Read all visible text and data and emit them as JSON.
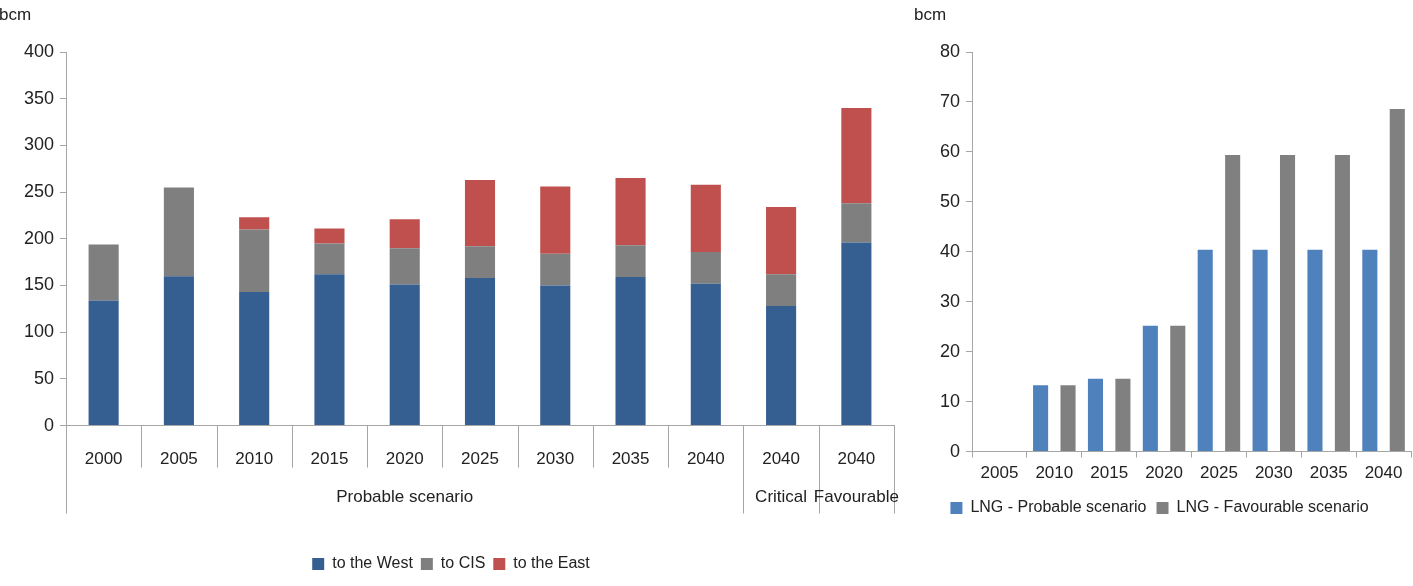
{
  "chart_data": [
    {
      "type": "bar",
      "stacked": true,
      "ylabel": "bcm",
      "categories": [
        "2000",
        "2005",
        "2010",
        "2015",
        "2020",
        "2025",
        "2030",
        "2035",
        "2040",
        "2040",
        "2040"
      ],
      "series": [
        {
          "name": "to the West",
          "color": "#365f91",
          "values": [
            134,
            160,
            143,
            162,
            151,
            158,
            150,
            159,
            152,
            128,
            196
          ]
        },
        {
          "name": "to CIS",
          "color": "#7f7f7f",
          "values": [
            60,
            95,
            67,
            33,
            39,
            34,
            34,
            34,
            34,
            34,
            42
          ]
        },
        {
          "name": "to the East",
          "color": "#c0504d",
          "values": [
            0,
            0,
            13,
            16,
            31,
            71,
            72,
            72,
            72,
            72,
            102
          ]
        }
      ],
      "ylim": [
        0,
        400
      ],
      "yticks": [
        0,
        50,
        100,
        150,
        200,
        250,
        300,
        350,
        400
      ],
      "grid": false,
      "legend": "bottom",
      "annotations": [
        "Probable scenario",
        "Critical",
        "Favourable"
      ]
    },
    {
      "type": "bar",
      "ylabel": "bcm",
      "categories": [
        "2005",
        "2010",
        "2015",
        "2020",
        "2025",
        "2030",
        "2035",
        "2040"
      ],
      "series": [
        {
          "name": "LNG - Probable scenario",
          "color": "#4f81bd",
          "values": [
            0,
            13.3,
            14.6,
            25.2,
            40.4,
            40.4,
            40.4,
            40.4
          ]
        },
        {
          "name": "LNG - Favourable scenario",
          "color": "#808080",
          "values": [
            0,
            13.3,
            14.6,
            25.2,
            59.4,
            59.4,
            59.4,
            68.6
          ]
        }
      ],
      "ylim": [
        0,
        80
      ],
      "yticks": [
        0,
        10,
        20,
        30,
        40,
        50,
        60,
        70,
        80
      ],
      "grid": false,
      "legend": "bottom"
    }
  ]
}
